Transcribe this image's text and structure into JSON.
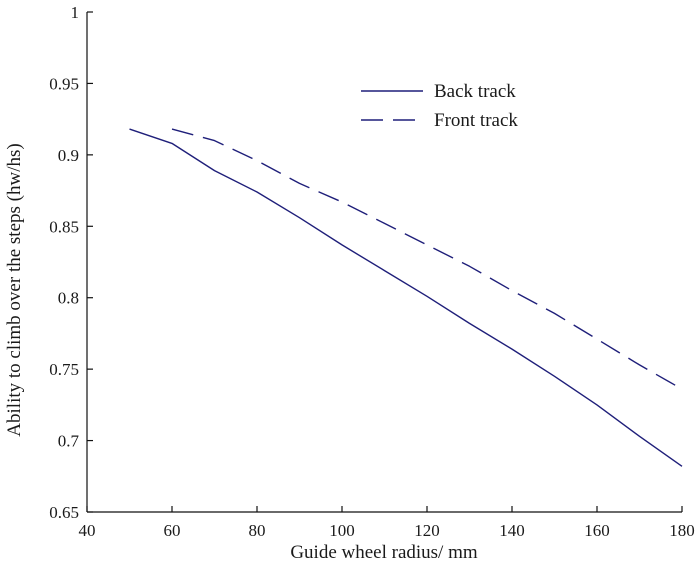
{
  "chart_data": {
    "type": "line",
    "title": "",
    "xlabel": "Guide wheel radius/ mm",
    "ylabel": "Ability to climb over the steps (hw/hs)",
    "xlim": [
      40,
      180
    ],
    "ylim": [
      0.65,
      1
    ],
    "xticks": [
      40,
      60,
      80,
      100,
      120,
      140,
      160,
      180
    ],
    "yticks": [
      0.65,
      0.7,
      0.75,
      0.8,
      0.85,
      0.9,
      0.95,
      1
    ],
    "xtick_labels": [
      "40",
      "60",
      "80",
      "100",
      "120",
      "140",
      "160",
      "180"
    ],
    "ytick_labels": [
      "0.65",
      "0.7",
      "0.75",
      "0.8",
      "0.85",
      "0.9",
      "0.95",
      "1"
    ],
    "grid": false,
    "legend_position": "top-right",
    "series": [
      {
        "name": "Back track",
        "style": "solid",
        "color": "#1f1f7a",
        "x": [
          50,
          60,
          70,
          80,
          90,
          100,
          110,
          120,
          130,
          140,
          150,
          160,
          170,
          180
        ],
        "y": [
          0.918,
          0.908,
          0.889,
          0.874,
          0.856,
          0.837,
          0.819,
          0.801,
          0.782,
          0.764,
          0.745,
          0.725,
          0.703,
          0.682
        ]
      },
      {
        "name": "Front track",
        "style": "dashed",
        "color": "#1f1f7a",
        "x": [
          60,
          70,
          80,
          90,
          100,
          110,
          120,
          130,
          140,
          150,
          160,
          170,
          180
        ],
        "y": [
          0.918,
          0.91,
          0.896,
          0.88,
          0.867,
          0.852,
          0.837,
          0.822,
          0.805,
          0.789,
          0.771,
          0.753,
          0.736
        ]
      }
    ]
  }
}
